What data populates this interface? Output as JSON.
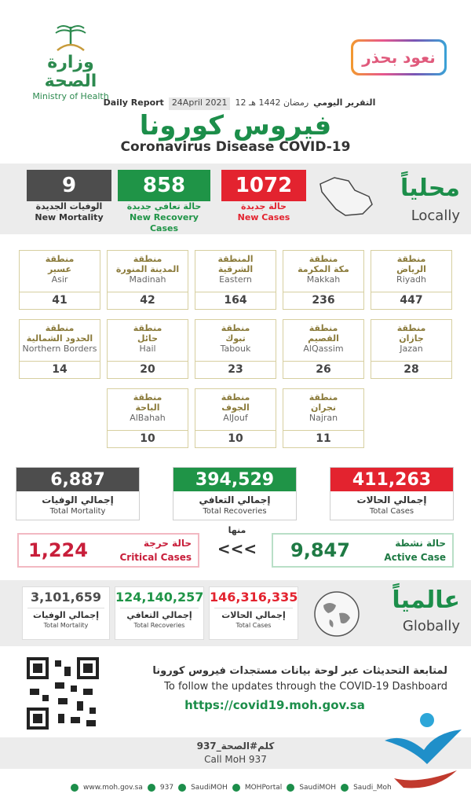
{
  "header": {
    "moh_ar": "وزارة الصحة",
    "moh_en": "Ministry of Health",
    "badge": "نعود بحذر",
    "daily_report_ar": "التقرير اليومي",
    "hijri_date": "12 رمضان 1442 هـ",
    "daily_report_en": "Daily Report",
    "greg_date": "24April 2021",
    "title_ar": "فيروس كورونا",
    "title_en": "Coronavirus Disease COVID-19"
  },
  "locally": {
    "title_ar": "محلياً",
    "title_en": "Locally",
    "new_cases": {
      "value": "1072",
      "ar": "حالة جديدة",
      "en": "New Cases"
    },
    "new_recovery": {
      "value": "858",
      "ar": "حالة تعافي جديدة",
      "en": "New Recovery Cases"
    },
    "new_mortality": {
      "value": "9",
      "ar": "الوفيات الجديدة",
      "en": "New Mortality"
    }
  },
  "regions": [
    {
      "ar1": "منطقة",
      "ar2": "الرياض",
      "en": "Riyadh",
      "value": "447"
    },
    {
      "ar1": "منطقة",
      "ar2": "مكة المكرمة",
      "en": "Makkah",
      "value": "236"
    },
    {
      "ar1": "المنطقة",
      "ar2": "الشرقية",
      "en": "Eastern",
      "value": "164"
    },
    {
      "ar1": "منطقة",
      "ar2": "المدينة المنورة",
      "en": "Madinah",
      "value": "42"
    },
    {
      "ar1": "منطقة",
      "ar2": "عسير",
      "en": "Asir",
      "value": "41"
    },
    {
      "ar1": "منطقة",
      "ar2": "جازان",
      "en": "Jazan",
      "value": "28"
    },
    {
      "ar1": "منطقة",
      "ar2": "القصيم",
      "en": "AlQassim",
      "value": "26"
    },
    {
      "ar1": "منطقة",
      "ar2": "تبوك",
      "en": "Tabouk",
      "value": "23"
    },
    {
      "ar1": "منطقة",
      "ar2": "حائل",
      "en": "Hail",
      "value": "20"
    },
    {
      "ar1": "منطقة",
      "ar2": "الحدود الشمالية",
      "en": "Northern Borders",
      "value": "14"
    },
    {
      "ar1": "منطقة",
      "ar2": "نجران",
      "en": "Najran",
      "value": "11"
    },
    {
      "ar1": "منطقة",
      "ar2": "الجوف",
      "en": "AlJouf",
      "value": "10"
    },
    {
      "ar1": "منطقة",
      "ar2": "الباحة",
      "en": "AlBahah",
      "value": "10"
    }
  ],
  "totals": {
    "cases": {
      "value": "411,263",
      "ar": "إجمالي الحالات",
      "en": "Total Cases"
    },
    "recoveries": {
      "value": "394,529",
      "ar": "إجمالي التعافي",
      "en": "Total Recoveries"
    },
    "mortality": {
      "value": "6,887",
      "ar": "إجمالي الوفيات",
      "en": "Total Mortality"
    }
  },
  "breakdown": {
    "of_which_ar": "منها",
    "arrows": "<<<",
    "active": {
      "value": "9,847",
      "ar": "حالة نشطة",
      "en": "Active Case"
    },
    "critical": {
      "value": "1,224",
      "ar": "حالة حرجة",
      "en": "Critical Cases"
    }
  },
  "globally": {
    "title_ar": "عالمياً",
    "title_en": "Globally",
    "cases": {
      "value": "146,316,335",
      "ar": "إجمالي الحالات",
      "en": "Total Cases"
    },
    "recoveries": {
      "value": "124,140,257",
      "ar": "إجمالي التعافي",
      "en": "Total Recoveries"
    },
    "mortality": {
      "value": "3,101,659",
      "ar": "إجمالي الوفيات",
      "en": "Total Mortality"
    }
  },
  "footer": {
    "follow_ar": "لمتابعة التحديثات عبر لوحة بيانات مستجدات فيروس كورونا",
    "follow_en": "To follow the updates through the COVID-19 Dashboard",
    "url": "https://covid19.moh.gov.sa",
    "call_ar": "كلم#الصحة_937",
    "call_en": "Call MoH 937",
    "socials": [
      "www.moh.gov.sa",
      "937",
      "SaudiMOH",
      "MOHPortal",
      "SaudiMOH",
      "Saudi_Moh"
    ]
  },
  "colors": {
    "red": "#e3232f",
    "green": "#1f9447",
    "gray": "#4d4d4d",
    "brand_green": "#1c8e4a"
  }
}
